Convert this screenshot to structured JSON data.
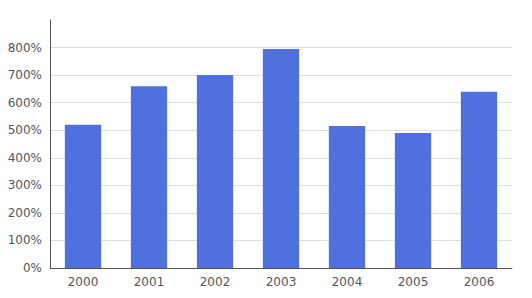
{
  "chart_data": {
    "type": "bar",
    "categories": [
      "2000",
      "2001",
      "2002",
      "2003",
      "2004",
      "2005",
      "2006"
    ],
    "values": [
      520,
      660,
      700,
      795,
      515,
      490,
      640
    ],
    "ylim": [
      0,
      900
    ],
    "yticks": [
      {
        "value": 0,
        "label": "0%"
      },
      {
        "value": 100,
        "label": "100%"
      },
      {
        "value": 200,
        "label": "200%"
      },
      {
        "value": 300,
        "label": "300%"
      },
      {
        "value": 400,
        "label": "400%"
      },
      {
        "value": 500,
        "label": "500%"
      },
      {
        "value": 600,
        "label": "600%"
      },
      {
        "value": 700,
        "label": "700%"
      },
      {
        "value": 800,
        "label": "800%"
      }
    ],
    "grid": true
  }
}
